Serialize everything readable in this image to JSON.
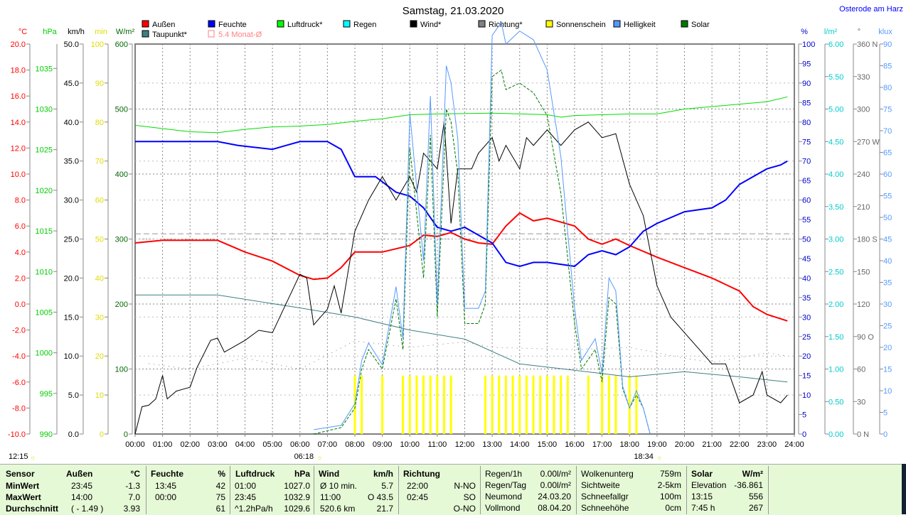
{
  "title": "Samstag, 21.03.2020",
  "location": "Osterode am Harz",
  "legend": [
    {
      "label": "Außen",
      "color": "#ff0000"
    },
    {
      "label": "Feuchte",
      "color": "#0000ff"
    },
    {
      "label": "Luftdruck*",
      "color": "#00ff00"
    },
    {
      "label": "Regen",
      "color": "#00ffff"
    },
    {
      "label": "Wind*",
      "color": "#000000"
    },
    {
      "label": "Richtung*",
      "color": "#808080"
    },
    {
      "label": "Sonnenschein",
      "color": "#ffff00"
    },
    {
      "label": "Helligkeit",
      "color": "#5599ff"
    },
    {
      "label": "Solar",
      "color": "#007700"
    },
    {
      "label": "Taupunkt*",
      "color": "#3f7f7f"
    },
    {
      "label": "5.4 Monat-Ø",
      "color": "#ff8080"
    }
  ],
  "sunrise": "06:18",
  "sunset": "18:34",
  "noon": "12:15",
  "chart_data": {
    "type": "line",
    "title": "Samstag, 21.03.2020",
    "xlabel": "",
    "x_ticks": [
      "00:00",
      "01:00",
      "02:00",
      "03:00",
      "04:00",
      "05:00",
      "06:00",
      "07:00",
      "08:00",
      "09:00",
      "10:00",
      "11:00",
      "12:00",
      "13:00",
      "14:00",
      "15:00",
      "16:00",
      "17:00",
      "18:00",
      "19:00",
      "20:00",
      "21:00",
      "22:00",
      "23:00",
      "24:00"
    ],
    "axes": [
      {
        "unit": "°C",
        "min": -10,
        "max": 20,
        "step": 2,
        "color": "#ff0000",
        "side": "left",
        "dec": 1
      },
      {
        "unit": "hPa",
        "min": 990,
        "max": 1038,
        "ticks_from": 990,
        "ticks_to": 1035,
        "step": 5,
        "color": "#00cc00",
        "side": "left",
        "dec": 0
      },
      {
        "unit": "km/h",
        "min": 0,
        "max": 50,
        "step": 5,
        "color": "#000000",
        "side": "left",
        "dec": 1
      },
      {
        "unit": "min",
        "min": 0,
        "max": 100,
        "step": 10,
        "color": "#dddd00",
        "side": "left",
        "dec": 0
      },
      {
        "unit": "W/m²",
        "min": 0,
        "max": 600,
        "step": 100,
        "color": "#006600",
        "side": "left",
        "dec": 0
      },
      {
        "unit": "%",
        "min": 0,
        "max": 100,
        "step": 5,
        "color": "#0000cc",
        "side": "right",
        "dec": 0
      },
      {
        "unit": "l/m²",
        "min": 0,
        "max": 6,
        "step": 0.5,
        "color": "#00cccc",
        "side": "right",
        "dec": 2
      },
      {
        "unit": "°",
        "min": 0,
        "max": 360,
        "step": 30,
        "color": "#666666",
        "side": "right",
        "dec": 0,
        "labels": {
          "360": "360 N",
          "270": "270 W",
          "180": "180 S",
          "90": "90 O",
          "0": "0 N"
        }
      },
      {
        "unit": "klux",
        "min": 0,
        "max": 90,
        "step": 5,
        "color": "#5599ff",
        "side": "right",
        "dec": 0
      }
    ],
    "month_avg_temp": 5.4,
    "series": [
      {
        "name": "Außen",
        "axis": 0,
        "color": "#ff0000",
        "width": 2,
        "t": [
          0,
          1,
          2,
          3,
          4,
          5,
          6,
          6.5,
          7,
          7.5,
          8,
          9,
          10,
          10.5,
          11,
          11.5,
          12,
          12.5,
          13,
          13.5,
          14,
          14.5,
          15,
          16,
          16.5,
          17,
          17.5,
          18,
          19,
          20,
          21,
          22,
          22.5,
          23,
          23.75
        ],
        "v": [
          4.7,
          4.9,
          4.9,
          4.9,
          4.0,
          3.3,
          2.2,
          1.9,
          2.0,
          2.8,
          4.0,
          4.0,
          4.5,
          5.3,
          5.2,
          5.5,
          5.0,
          4.7,
          4.6,
          6.0,
          7.0,
          6.4,
          6.6,
          6.0,
          5.0,
          4.6,
          5.0,
          4.5,
          3.6,
          2.8,
          2.0,
          1.0,
          -0.2,
          -0.8,
          -1.3
        ]
      },
      {
        "name": "Feuchte",
        "axis": 5,
        "color": "#0000ff",
        "width": 2,
        "t": [
          0,
          3,
          3.75,
          5,
          5.5,
          6,
          7,
          7.5,
          8,
          8.75,
          9.5,
          10,
          10.5,
          11,
          11.5,
          12,
          12.5,
          13,
          13.5,
          14,
          14.5,
          15,
          16,
          16.5,
          17,
          17.5,
          18,
          18.5,
          19,
          20,
          21,
          21.5,
          22,
          23,
          23.5,
          23.75
        ],
        "v": [
          75,
          75,
          74,
          73,
          74,
          75,
          75,
          73,
          66,
          66,
          62,
          61,
          58,
          53,
          52,
          53,
          51,
          49,
          44,
          43,
          44,
          44,
          43,
          46,
          47,
          46,
          48,
          52,
          54,
          57,
          58,
          60,
          64,
          68,
          69,
          70
        ]
      },
      {
        "name": "Luftdruck*",
        "axis": 1,
        "color": "#00dd00",
        "width": 1,
        "t": [
          0,
          1,
          2,
          3,
          4,
          5,
          6,
          7,
          8,
          9,
          10,
          11,
          13,
          15,
          15.5,
          16,
          18,
          19,
          20,
          22,
          23,
          23.75
        ],
        "v": [
          1028,
          1027.6,
          1027.2,
          1027.1,
          1027.5,
          1027.8,
          1027.9,
          1028.1,
          1028.5,
          1028.8,
          1029.3,
          1029.4,
          1029.5,
          1029.3,
          1029.0,
          1029.2,
          1029.4,
          1029.4,
          1030.0,
          1030.6,
          1030.9,
          1031.5
        ]
      },
      {
        "name": "Taupunkt*",
        "axis": 0,
        "color": "#3f7f7f",
        "width": 1,
        "t": [
          0,
          3,
          6,
          8,
          10,
          12,
          14,
          16,
          18,
          20,
          22,
          23.75
        ],
        "v": [
          0.7,
          0.7,
          -0.3,
          -1.0,
          -2.0,
          -2.7,
          -4.6,
          -5.1,
          -5.6,
          -5.2,
          -5.6,
          -6.0
        ]
      },
      {
        "name": "Wind*",
        "axis": 2,
        "color": "#000000",
        "width": 1,
        "t": [
          0,
          0.25,
          0.5,
          0.75,
          1,
          1.17,
          1.5,
          2,
          2.25,
          2.75,
          3,
          3.25,
          3.5,
          4,
          4.5,
          5,
          6,
          6.25,
          6.5,
          7,
          7.25,
          7.5,
          8,
          8.5,
          9,
          9.5,
          10,
          10.25,
          10.5,
          11,
          11.25,
          11.5,
          11.75,
          12.25,
          12.5,
          13,
          13.25,
          13.5,
          14,
          14.25,
          14.5,
          15,
          15.5,
          16,
          16.5,
          17,
          17.5,
          18,
          18.5,
          19,
          19.5,
          20,
          20.5,
          21,
          21.5,
          22,
          22.5,
          22.83,
          23,
          23.5,
          23.75
        ],
        "v": [
          0,
          3.5,
          3.7,
          4.5,
          7.5,
          4.5,
          5.5,
          6,
          8.5,
          12,
          12.3,
          10.5,
          11,
          12,
          13.3,
          13,
          20.5,
          20,
          14,
          16,
          19,
          15.5,
          26,
          30,
          33,
          30,
          33,
          31,
          36,
          34,
          40,
          27,
          34,
          34,
          36,
          38,
          35,
          37,
          34,
          38,
          37,
          39,
          37,
          39,
          40,
          38,
          38.5,
          32,
          28,
          19,
          15,
          13,
          11,
          9,
          9,
          4,
          5,
          8,
          5,
          4,
          5
        ]
      },
      {
        "name": "Richtung*",
        "axis": 7,
        "color": "#808080",
        "width": 1,
        "dotted": true,
        "t": [
          0.5,
          2,
          4,
          6,
          8,
          10,
          12,
          13,
          16,
          18,
          20,
          21,
          23,
          23.75
        ],
        "v": [
          65,
          60,
          70,
          60,
          86,
          80,
          85,
          80,
          78,
          80,
          70,
          66,
          75,
          72
        ]
      },
      {
        "name": "Solar",
        "axis": 4,
        "color": "#007700",
        "width": 1,
        "dashed": true,
        "t": [
          6.5,
          7.5,
          8,
          8.25,
          8.5,
          9,
          9.5,
          9.75,
          10,
          10.5,
          10.75,
          11,
          11.33,
          11.5,
          11.75,
          12,
          12.5,
          12.75,
          13,
          13.33,
          13.5,
          14,
          14.5,
          15,
          15.5,
          16,
          16.25,
          16.75,
          17,
          17.25,
          17.5,
          17.75,
          18,
          18.25,
          18.5,
          18.75
        ],
        "v": [
          0,
          10,
          40,
          100,
          130,
          100,
          208,
          130,
          440,
          240,
          460,
          180,
          500,
          480,
          400,
          170,
          170,
          200,
          550,
          560,
          530,
          540,
          525,
          490,
          370,
          170,
          100,
          130,
          80,
          210,
          200,
          70,
          40,
          60,
          40,
          0
        ]
      },
      {
        "name": "Helligkeit",
        "axis": 8,
        "color": "#5599ff",
        "width": 1,
        "t": [
          6.5,
          7.5,
          8,
          8.25,
          8.5,
          9,
          9.5,
          9.75,
          10,
          10.5,
          10.75,
          11,
          11.33,
          11.5,
          11.75,
          12,
          12.5,
          12.75,
          13,
          13.33,
          13.5,
          14,
          14.5,
          15,
          15.5,
          16,
          16.25,
          16.75,
          17,
          17.25,
          17.5,
          17.75,
          18,
          18.25,
          18.5,
          18.75
        ],
        "v": [
          1,
          2,
          7,
          17,
          21,
          16,
          34,
          22,
          74,
          40,
          78,
          30,
          85,
          81,
          68,
          29,
          29,
          33,
          92,
          95,
          90,
          93,
          91,
          84,
          64,
          29,
          17,
          22,
          14,
          36,
          33,
          11,
          6,
          10,
          6,
          0
        ]
      }
    ],
    "sunshine_min": {
      "axis": 3,
      "color": "#ffff00",
      "t": [
        8,
        8.25,
        9,
        9.75,
        10,
        10.25,
        10.5,
        10.75,
        11,
        11.25,
        11.5,
        12.75,
        13,
        13.25,
        13.5,
        13.75,
        14,
        14.25,
        14.5,
        14.75,
        15,
        15.25,
        15.5,
        15.75,
        16.5,
        17,
        17.25,
        17.5,
        18,
        18.25
      ],
      "v": [
        15,
        15,
        15,
        15,
        15,
        15,
        15,
        15,
        15,
        15,
        15,
        15,
        15,
        15,
        15,
        15,
        15,
        15,
        15,
        15,
        15,
        15,
        15,
        15,
        15,
        15,
        15,
        15,
        15,
        15
      ]
    }
  },
  "table": {
    "headers": [
      "Sensor",
      "Außen",
      "°C",
      "Feuchte",
      "%",
      "Luftdruck",
      "hPa",
      "Wind",
      "km/h",
      "Richtung"
    ],
    "rows": [
      {
        "label": "MinWert",
        "a_t": "23:45",
        "a_v": "-1.3",
        "f_t": "13:45",
        "f_v": "42",
        "l_t": "01:00",
        "l_v": "1027.0",
        "w_t": "Ø 10 min.",
        "w_v": "5.7",
        "r_t": "22:00",
        "r_v": "N-NO"
      },
      {
        "label": "MaxWert",
        "a_t": "14:00",
        "a_v": "7.0",
        "f_t": "00:00",
        "f_v": "75",
        "l_t": "23:45",
        "l_v": "1032.9",
        "w_t": "11:00",
        "w_v": "O 43.5",
        "r_t": "02:45",
        "r_v": "SO"
      },
      {
        "label": "Durchschnitt",
        "a_t": "( - 1.49 )",
        "a_v": "3.93",
        "f_t": "",
        "f_v": "61",
        "l_t": "^1.2hPa/h",
        "l_v": "1029.6",
        "w_t": "520.6 km",
        "w_v": "21.7",
        "r_t": "",
        "r_v": "O-NO"
      }
    ],
    "extra": [
      [
        "Regen/1h",
        "0.00l/m²",
        "Wolkenunterg",
        "759m",
        "Solar",
        "W/m²"
      ],
      [
        "Regen/Tag",
        "0.00l/m²",
        "Sichtweite",
        "2-5km",
        "Elevation",
        "-36.861"
      ],
      [
        "Neumond",
        "24.03.20",
        "Schneefallgr",
        "100m",
        "13:15",
        "556"
      ],
      [
        "Vollmond",
        "08.04.20",
        "Schneehöhe",
        "0cm",
        "7:45 h",
        "267"
      ]
    ]
  }
}
